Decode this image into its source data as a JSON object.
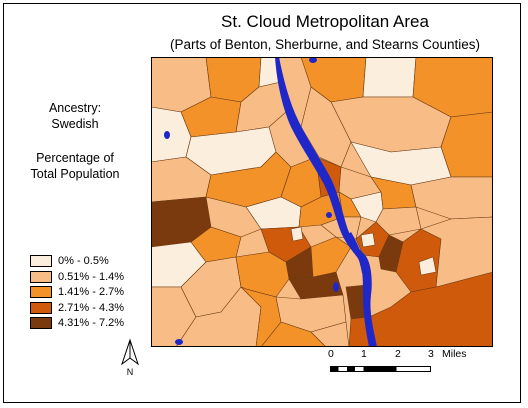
{
  "title": "St. Cloud Metropolitan Area",
  "subtitle": "(Parts of Benton, Sherburne, and Stearns Counties)",
  "side": {
    "ancestry_label": "Ancestry:",
    "ancestry_value": "Swedish",
    "measure_line1": "Percentage of",
    "measure_line2": "Total Population"
  },
  "legend": [
    {
      "label": "0% - 0.5%",
      "color": "#fbeedd"
    },
    {
      "label": "0.51% - 1.4%",
      "color": "#f8bd86"
    },
    {
      "label": "1.41% - 2.7%",
      "color": "#f39228"
    },
    {
      "label": "2.71% - 4.3%",
      "color": "#cf5a0c"
    },
    {
      "label": "4.31% - 7.2%",
      "color": "#7a3a0e"
    }
  ],
  "water_color": "#1f27c9",
  "scale": {
    "ticks": [
      "0",
      "1",
      "2",
      "3"
    ],
    "unit": "Miles"
  },
  "north_label": "N"
}
